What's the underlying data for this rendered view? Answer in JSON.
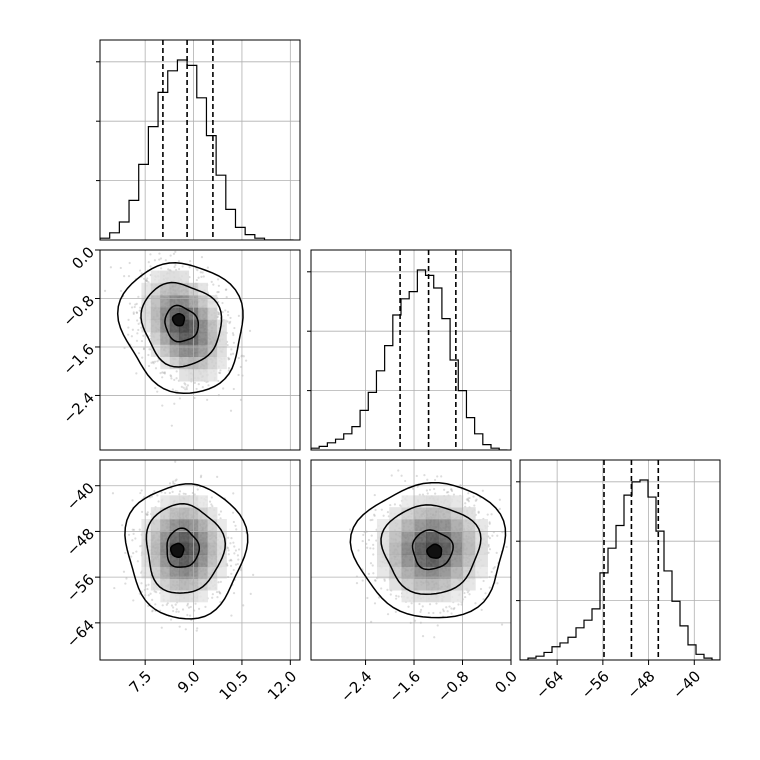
{
  "chart_data": {
    "type": "corner",
    "params": [
      {
        "ticks": [
          7.5,
          9.0,
          10.5,
          12.0
        ],
        "tick_labels": [
          "7.5",
          "9.0",
          "10.5",
          "12.0"
        ],
        "range": [
          6.1,
          12.3
        ]
      },
      {
        "ticks": [
          0.0,
          -0.8,
          -1.6,
          -2.4
        ],
        "tick_labels": [
          "0.0",
          "−0.8",
          "−1.6",
          "−2.4"
        ],
        "range": [
          -3.3,
          0.0
        ]
      },
      {
        "ticks": [
          -40,
          -48,
          -56,
          -64
        ],
        "tick_labels": [
          "−40",
          "−48",
          "−56",
          "−64"
        ],
        "range": [
          -70.5,
          -35.5
        ]
      }
    ],
    "diag": [
      {
        "bin_edges": [
          6.1,
          6.4,
          6.7,
          7.0,
          7.3,
          7.6,
          7.9,
          8.2,
          8.5,
          8.8,
          9.1,
          9.4,
          9.7,
          10.0,
          10.3,
          10.6,
          10.9,
          11.2,
          11.5,
          11.8,
          12.1
        ],
        "counts": [
          1,
          4,
          10,
          22,
          42,
          63,
          82,
          94,
          100,
          97,
          79,
          58,
          36,
          17,
          7,
          3,
          1,
          0,
          0,
          0
        ],
        "quantiles": [
          8.05,
          8.8,
          9.6
        ]
      },
      {
        "bin_edges": [
          -3.3,
          -3.165,
          -3.03,
          -2.895,
          -2.76,
          -2.625,
          -2.49,
          -2.355,
          -2.22,
          -2.085,
          -1.95,
          -1.815,
          -1.68,
          -1.545,
          -1.41,
          -1.275,
          -1.14,
          -1.005,
          -0.87,
          -0.735,
          -0.6,
          -0.465,
          -0.33,
          -0.195,
          -0.06
        ],
        "counts": [
          1,
          2,
          4,
          6,
          9,
          13,
          22,
          32,
          44,
          58,
          75,
          84,
          88,
          100,
          97,
          90,
          73,
          50,
          33,
          18,
          9,
          3,
          1,
          0
        ],
        "quantiles": [
          -1.83,
          -1.36,
          -0.91
        ]
      },
      {
        "bin_edges": [
          -70.5,
          -69.1,
          -67.7,
          -66.3,
          -64.9,
          -63.5,
          -62.1,
          -60.7,
          -59.3,
          -57.9,
          -56.5,
          -55.1,
          -53.7,
          -52.3,
          -50.9,
          -49.5,
          -48.1,
          -46.7,
          -45.3,
          -43.9,
          -42.5,
          -41.1,
          -39.7,
          -38.3,
          -36.9,
          -35.5
        ],
        "counts": [
          0,
          1,
          2,
          4,
          7,
          9,
          12,
          17,
          21,
          27,
          46,
          59,
          71,
          87,
          94,
          95,
          86,
          68,
          47,
          31,
          18,
          8,
          3,
          1,
          0
        ],
        "quantiles": [
          -55.8,
          -51.0,
          -46.3
        ]
      }
    ],
    "pairs": [
      {
        "x_param": 0,
        "y_param": 1,
        "mean": [
          8.7,
          -1.25
        ],
        "sd": [
          0.65,
          0.45
        ],
        "corr": -0.3,
        "samples": 1600,
        "contours": [
          {
            "level": "39%",
            "rx": 0.5,
            "ry": 0.3,
            "rot": -30,
            "cx": 8.62,
            "cy": -1.22
          },
          {
            "level": "86%",
            "rx": 1.2,
            "ry": 0.7,
            "rot": -30,
            "cx": 8.62,
            "cy": -1.22
          },
          {
            "level": "99%",
            "rx": 1.85,
            "ry": 1.1,
            "rot": -28,
            "cx": 8.66,
            "cy": -1.26
          },
          {
            "level": "peak",
            "rx": 0.18,
            "ry": 0.1,
            "rot": -20,
            "cx": 8.54,
            "cy": -1.15
          }
        ]
      },
      {
        "x_param": 0,
        "y_param": 2,
        "mean": [
          8.7,
          -51.0
        ],
        "sd": [
          0.65,
          4.6
        ],
        "corr": 0.0,
        "samples": 1600,
        "contours": [
          {
            "level": "39%",
            "rx": 0.5,
            "ry": 3.4,
            "rot": 0,
            "cx": 8.65,
            "cy": -51.0
          },
          {
            "level": "86%",
            "rx": 1.2,
            "ry": 7.8,
            "rot": 0,
            "cx": 8.7,
            "cy": -51.0
          },
          {
            "level": "99%",
            "rx": 1.85,
            "ry": 11.8,
            "rot": 0,
            "cx": 8.75,
            "cy": -51.2
          },
          {
            "level": "peak",
            "rx": 0.2,
            "ry": 1.2,
            "rot": 0,
            "cx": 8.5,
            "cy": -51.3
          }
        ]
      },
      {
        "x_param": 1,
        "y_param": 2,
        "mean": [
          -1.3,
          -51.0
        ],
        "sd": [
          0.45,
          4.6
        ],
        "corr": 0.05,
        "samples": 1600,
        "contours": [
          {
            "level": "39%",
            "rx": 0.33,
            "ry": 3.4,
            "rot": 0,
            "cx": -1.3,
            "cy": -51.2
          },
          {
            "level": "86%",
            "rx": 0.8,
            "ry": 7.8,
            "rot": 0,
            "cx": -1.32,
            "cy": -51.0
          },
          {
            "level": "99%",
            "rx": 1.25,
            "ry": 11.8,
            "rot": 0,
            "cx": -1.32,
            "cy": -51.2
          },
          {
            "level": "peak",
            "rx": 0.12,
            "ry": 1.2,
            "rot": 0,
            "cx": -1.26,
            "cy": -51.5
          }
        ]
      }
    ],
    "grid": true,
    "colors": {
      "line": "#000000",
      "grid": "#b0b0b0",
      "points": "#9a9a9a",
      "background": "#ffffff"
    }
  }
}
